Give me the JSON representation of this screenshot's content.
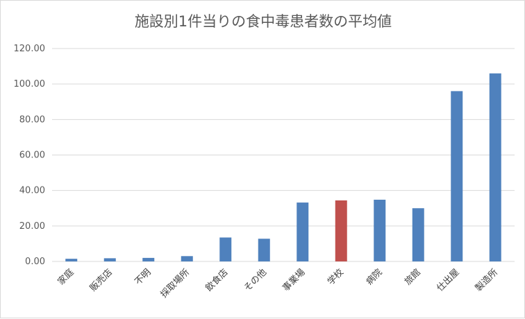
{
  "chart_data": {
    "type": "bar",
    "title": "施設別1件当りの食中毒患者数の平均値",
    "xlabel": "",
    "ylabel": "",
    "categories": [
      "家庭",
      "販売店",
      "不明",
      "採取場所",
      "飲食店",
      "その他",
      "事業場",
      "学校",
      "病院",
      "旅館",
      "仕出屋",
      "製造所"
    ],
    "values": [
      1.5,
      1.8,
      2.0,
      3.0,
      13.5,
      12.8,
      33.2,
      34.4,
      34.8,
      30.0,
      96.0,
      106.0
    ],
    "highlight_category": "学校",
    "ylim": [
      0,
      120
    ],
    "yticks": [
      "0.00",
      "20.00",
      "40.00",
      "60.00",
      "80.00",
      "100.00",
      "120.00"
    ],
    "grid": true,
    "legend": "none",
    "colors": {
      "bar": "#4f81bd",
      "highlight": "#c0504d",
      "grid": "#d9d9d9"
    }
  }
}
